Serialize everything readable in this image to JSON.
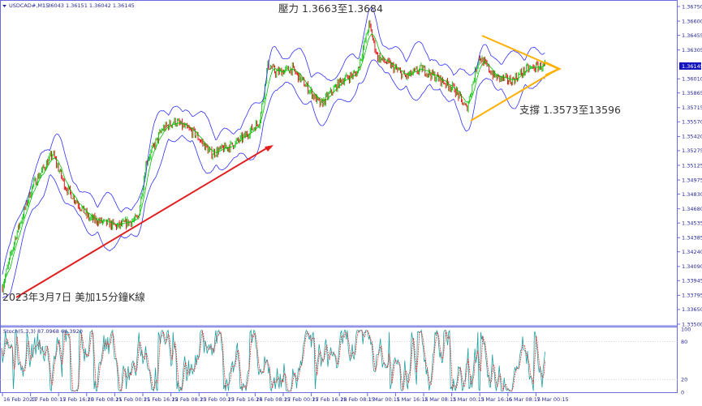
{
  "header": {
    "symbol": "USDCAD#,M15",
    "ohlc": "1.36043 1.36151 1.36042 1.36145"
  },
  "indicator_label": "Stoch(5,3,3) 87.0968 64.3920",
  "current_price": "1.36145",
  "annotations": {
    "resistance": "壓力 1.3663至1.3684",
    "support": "支撐 1.3573至13596",
    "caption": "2023年3月7日 美加15分鐘K線"
  },
  "colors": {
    "up": "#00c000",
    "down": "#e00000",
    "envelope": "#3030ff",
    "trendline": "#e02020",
    "triangle": "#ffb000",
    "axis": "#6a6ae0",
    "stoch_main": "#20a0a0",
    "stoch_signal": "#e03030"
  },
  "chart_data": {
    "type": "candlestick",
    "timeframe": "M15",
    "x_tick_labels": [
      "16 Feb 2023",
      "17 Feb 00:15",
      "17 Feb 16:15",
      "20 Feb 08:15",
      "21 Feb 00:15",
      "21 Feb 16:15",
      "22 Feb 08:15",
      "23 Feb 00:15",
      "23 Feb 16:15",
      "24 Feb 08:15",
      "27 Feb 00:15",
      "27 Feb 16:15",
      "28 Feb 08:15",
      "1 Mar 00:15",
      "1 Mar 16:15",
      "2 Mar 08:15",
      "3 Mar 00:15",
      "3 Mar 16:15",
      "6 Mar 08:15",
      "7 Mar 00:15"
    ],
    "y_tick_labels": [
      "1.36750",
      "1.36600",
      "1.36455",
      "1.36305",
      "1.36145",
      "1.36010",
      "1.35865",
      "1.35715",
      "1.35570",
      "1.35420",
      "1.35275",
      "1.35125",
      "1.34975",
      "1.34830",
      "1.34680",
      "1.34535",
      "1.34385",
      "1.34240",
      "1.34090",
      "1.33945",
      "1.33795",
      "1.33650",
      "1.33500"
    ],
    "ylim": [
      1.335,
      1.3675
    ],
    "close_path": [
      [
        0,
        1.33879
      ],
      [
        0.49,
        1.34417
      ],
      [
        1.07,
        1.34913
      ],
      [
        1.79,
        1.35244
      ],
      [
        2.23,
        1.34913
      ],
      [
        3.09,
        1.34582
      ],
      [
        4.1,
        1.345
      ],
      [
        4.83,
        1.34582
      ],
      [
        5.12,
        1.35161
      ],
      [
        5.69,
        1.35492
      ],
      [
        6.13,
        1.35575
      ],
      [
        6.85,
        1.35451
      ],
      [
        7.43,
        1.35244
      ],
      [
        8.15,
        1.35327
      ],
      [
        8.58,
        1.3541
      ],
      [
        9.16,
        1.35575
      ],
      [
        9.45,
        1.36154
      ],
      [
        9.74,
        1.36072
      ],
      [
        10.32,
        1.36113
      ],
      [
        10.9,
        1.35906
      ],
      [
        11.33,
        1.35741
      ],
      [
        12.05,
        1.35989
      ],
      [
        12.63,
        1.36072
      ],
      [
        13.06,
        1.36568
      ],
      [
        13.35,
        1.36237
      ],
      [
        13.79,
        1.36154
      ],
      [
        14.36,
        1.3603
      ],
      [
        14.94,
        1.36113
      ],
      [
        15.66,
        1.35989
      ],
      [
        16.1,
        1.35906
      ],
      [
        16.53,
        1.35699
      ],
      [
        16.97,
        1.36237
      ],
      [
        17.54,
        1.3603
      ],
      [
        18.12,
        1.35989
      ],
      [
        18.7,
        1.36113
      ],
      [
        19.34,
        1.36145
      ]
    ],
    "stoch": {
      "y_tick_labels": [
        "100",
        "80",
        "20",
        "0"
      ],
      "ylim": [
        0,
        100
      ],
      "levels": [
        80,
        20
      ]
    },
    "grid": false
  }
}
